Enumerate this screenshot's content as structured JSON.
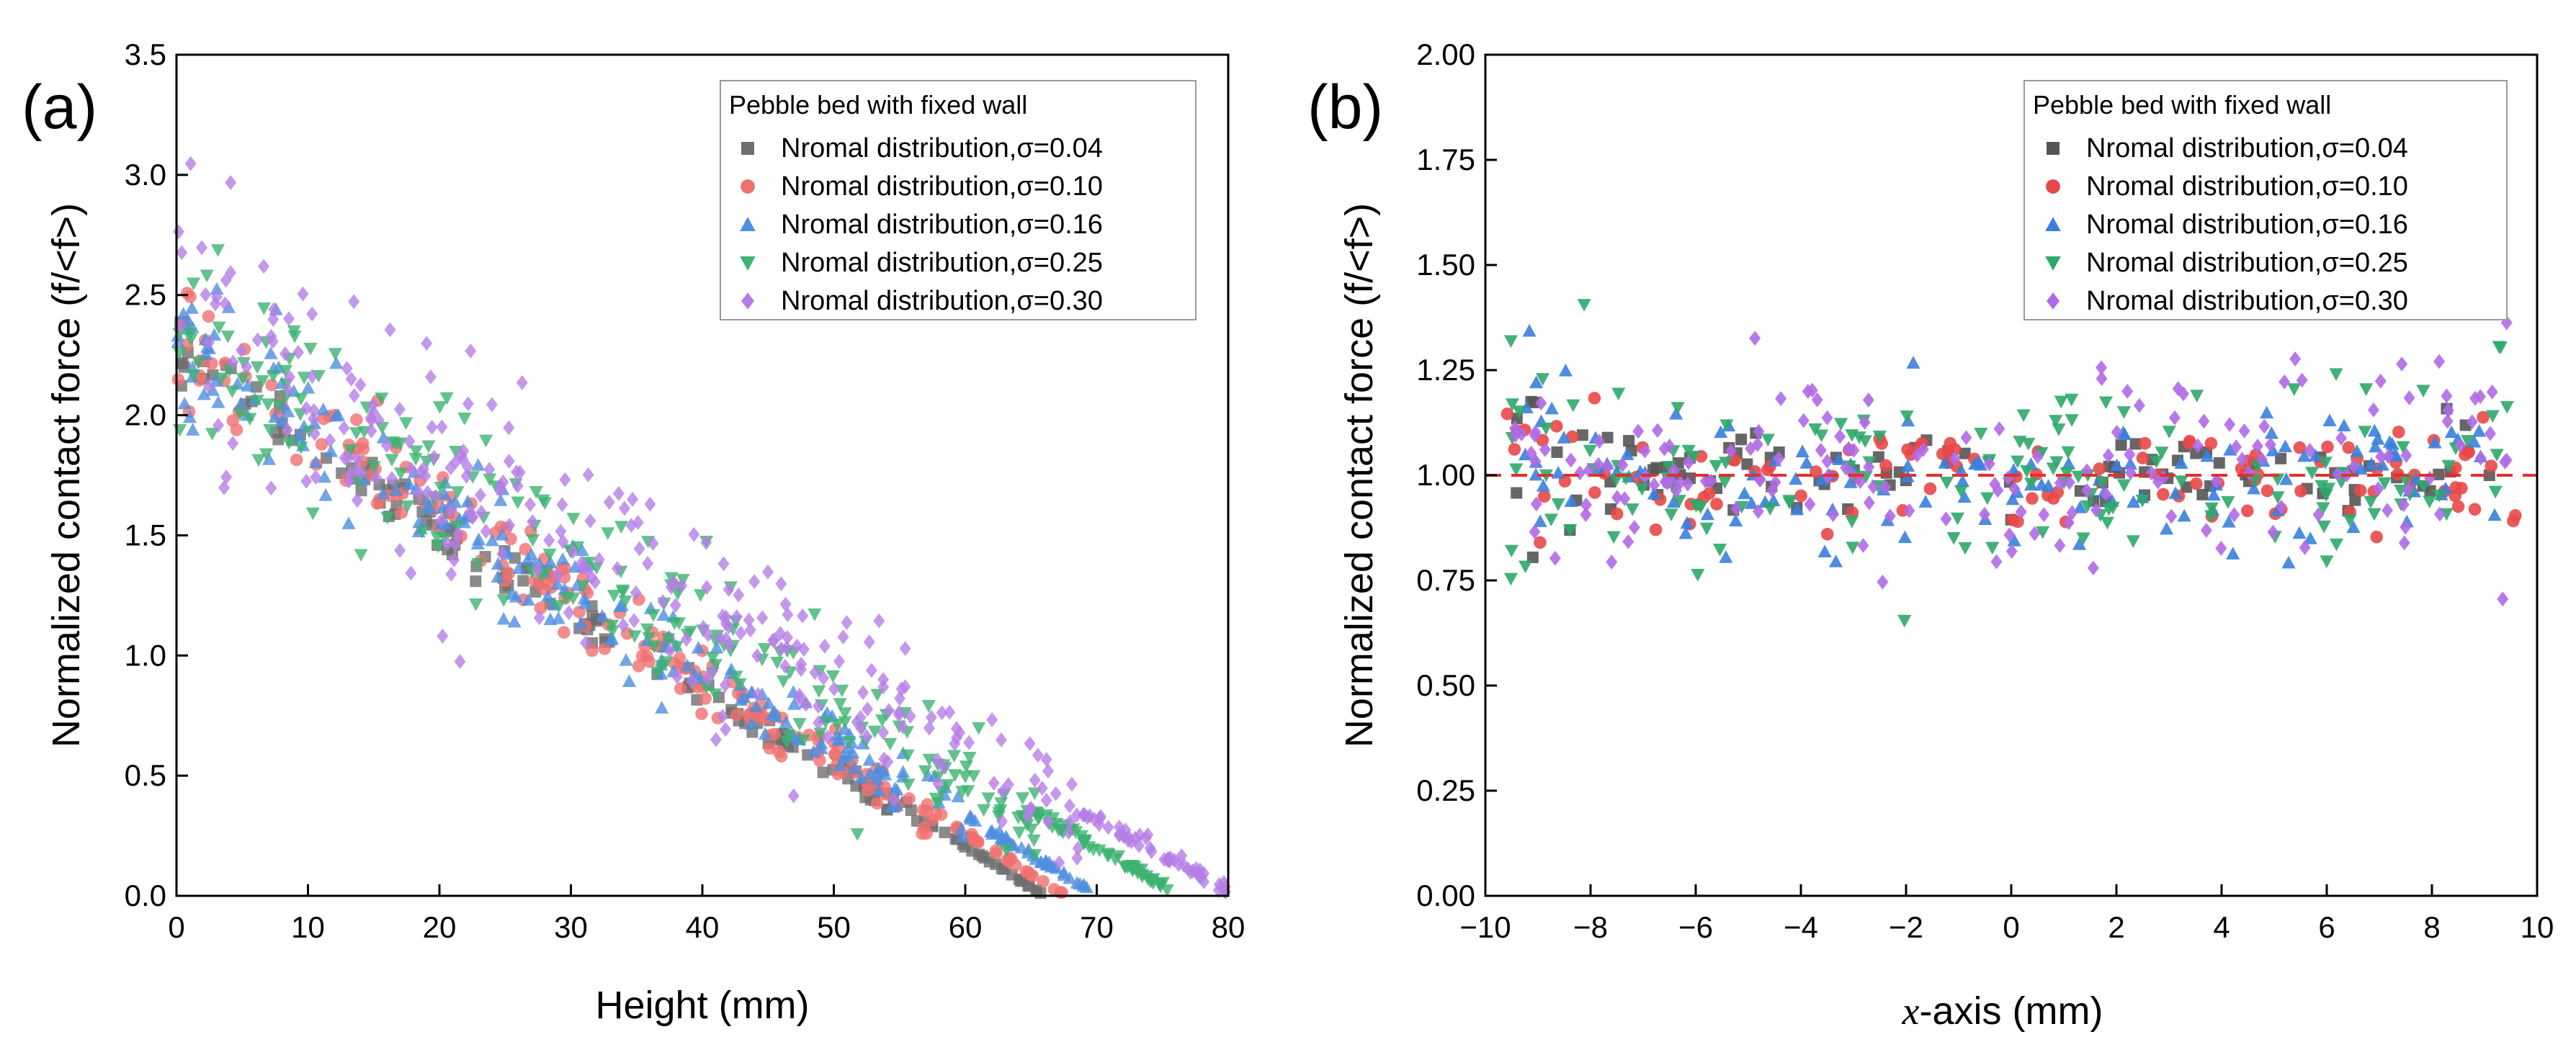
{
  "chart_data": [
    {
      "type": "scatter",
      "panel_label": "(a)",
      "title": "",
      "xlabel": "Height (mm)",
      "ylabel": "Normalized contact force (f/<f>)",
      "xlim": [
        0,
        80
      ],
      "ylim": [
        0,
        3.5
      ],
      "xticks": [
        "0",
        "10",
        "20",
        "30",
        "40",
        "50",
        "60",
        "70",
        "80"
      ],
      "yticks": [
        "0.0",
        "0.5",
        "1.0",
        "1.5",
        "2.0",
        "2.5",
        "3.0",
        "3.5"
      ],
      "legend_title": "Pebble bed with fixed wall",
      "legend_position": "top-right",
      "series": [
        {
          "name": "Nromal distribution,σ=0.04",
          "color": "#6e6e6e",
          "marker": "square",
          "end_x": 66,
          "start_y": 2.25,
          "noise": 0.07
        },
        {
          "name": "Nromal distribution,σ=0.10",
          "color": "#f07070",
          "marker": "circle",
          "end_x": 67.5,
          "start_y": 2.3,
          "noise": 0.12
        },
        {
          "name": "Nromal distribution,σ=0.16",
          "color": "#4f8fe0",
          "marker": "triangle-up",
          "end_x": 70,
          "start_y": 2.3,
          "noise": 0.15
        },
        {
          "name": "Nromal distribution,σ=0.25",
          "color": "#3cb371",
          "marker": "triangle-down",
          "end_x": 76,
          "start_y": 2.35,
          "noise": 0.24
        },
        {
          "name": "Nromal distribution,σ=0.30",
          "color": "#b57ee6",
          "marker": "diamond",
          "end_x": 80,
          "start_y": 2.45,
          "noise": 0.3
        }
      ]
    },
    {
      "type": "scatter",
      "panel_label": "(b)",
      "title": "",
      "xlabel": "-axis (mm)",
      "xlabel_var": "x",
      "ylabel": "Normalized contact force (f/<f>)",
      "xlim": [
        -10,
        10
      ],
      "ylim": [
        0,
        2.0
      ],
      "xticks": [
        "−10",
        "−8",
        "−6",
        "−4",
        "−2",
        "0",
        "2",
        "4",
        "6",
        "8",
        "10"
      ],
      "yticks": [
        "0.00",
        "0.25",
        "0.50",
        "0.75",
        "1.00",
        "1.25",
        "1.50",
        "1.75",
        "2.00"
      ],
      "reference_line": {
        "y": 1.0,
        "color": "#e03030",
        "style": "dashed"
      },
      "legend_title": "Pebble bed with fixed wall",
      "legend_position": "top-right",
      "series": [
        {
          "name": "Nromal distribution,σ=0.04",
          "color": "#555555",
          "marker": "square",
          "noise": 0.05
        },
        {
          "name": "Nromal distribution,σ=0.10",
          "color": "#e84848",
          "marker": "circle",
          "noise": 0.07
        },
        {
          "name": "Nromal distribution,σ=0.16",
          "color": "#3a7fdc",
          "marker": "triangle-up",
          "noise": 0.08
        },
        {
          "name": "Nromal distribution,σ=0.25",
          "color": "#2ea86a",
          "marker": "triangle-down",
          "noise": 0.11
        },
        {
          "name": "Nromal distribution,σ=0.30",
          "color": "#b06ae6",
          "marker": "diamond",
          "noise": 0.12
        }
      ]
    }
  ]
}
